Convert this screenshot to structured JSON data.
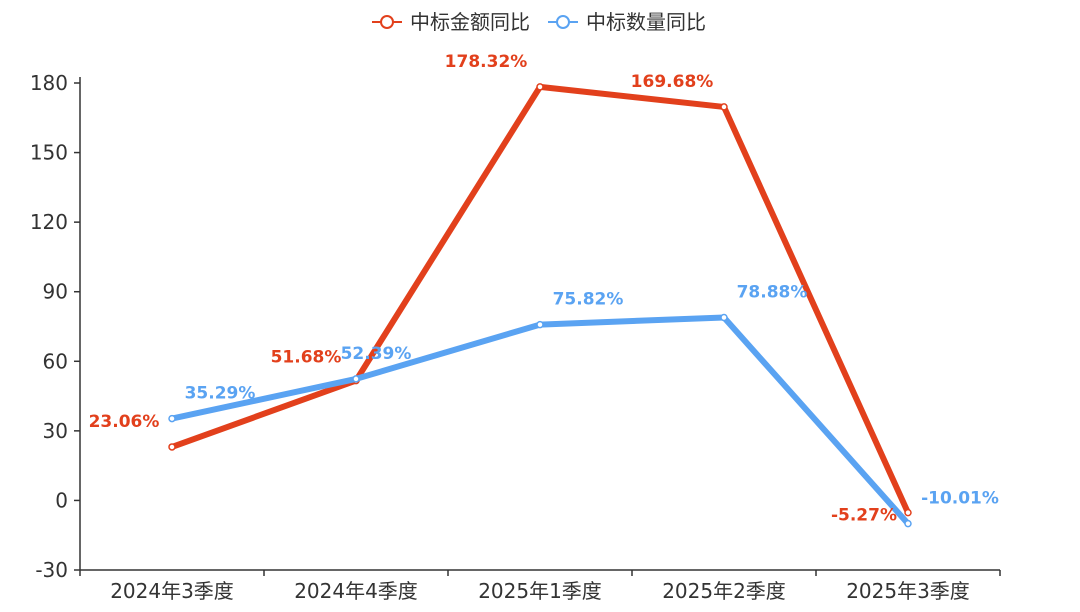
{
  "chart_data": {
    "type": "line",
    "title": "",
    "xlabel": "",
    "ylabel": "",
    "categories": [
      "2024年3季度",
      "2024年4季度",
      "2025年1季度",
      "2025年2季度",
      "2025年3季度"
    ],
    "ylim": [
      -30,
      180
    ],
    "yticks": [
      -30,
      0,
      30,
      60,
      90,
      120,
      150,
      180
    ],
    "grid": false,
    "legend_position": "top-center",
    "series": [
      {
        "name": "中标金额同比",
        "color": "#e2401c",
        "values": [
          23.06,
          51.68,
          178.32,
          169.68,
          -5.27
        ],
        "labels": [
          "23.06%",
          "51.68%",
          "178.32%",
          "169.68%",
          "-5.27%"
        ]
      },
      {
        "name": "中标数量同比",
        "color": "#5aa3f2",
        "values": [
          35.29,
          52.39,
          75.82,
          78.88,
          -10.01
        ],
        "labels": [
          "35.29%",
          "52.39%",
          "75.82%",
          "78.88%",
          "-10.01%"
        ]
      }
    ]
  }
}
